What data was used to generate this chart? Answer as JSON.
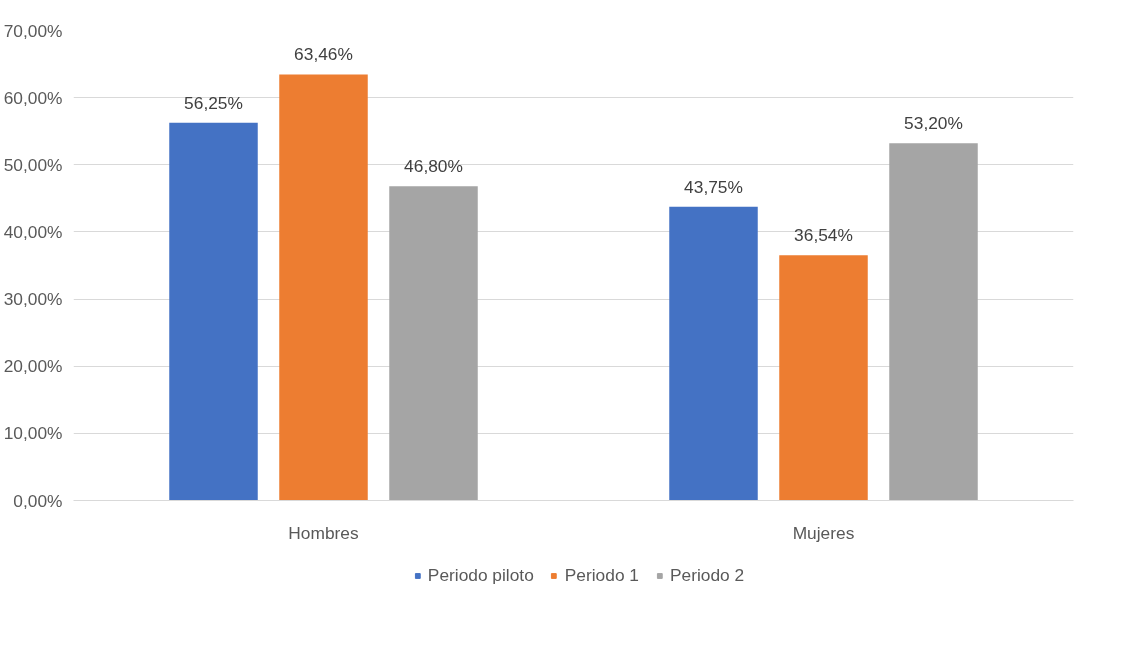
{
  "chart_data": {
    "type": "bar",
    "categories": [
      "Hombres",
      "Mujeres"
    ],
    "series": [
      {
        "name": "Periodo piloto",
        "color": "#4472c4",
        "values": [
          56.25,
          43.75
        ],
        "value_labels": [
          "56,25%",
          "43,75%"
        ]
      },
      {
        "name": "Periodo 1",
        "color": "#ed7d31",
        "values": [
          63.46,
          36.54
        ],
        "value_labels": [
          "63,46%",
          "36,54%"
        ]
      },
      {
        "name": "Periodo 2",
        "color": "#a5a5a5",
        "values": [
          46.8,
          53.2
        ],
        "value_labels": [
          "46,80%",
          "53,20%"
        ]
      }
    ],
    "ylim": [
      0,
      70
    ],
    "yticks": [
      {
        "value": 0,
        "label": "0,00%"
      },
      {
        "value": 10,
        "label": "10,00%"
      },
      {
        "value": 20,
        "label": "20,00%"
      },
      {
        "value": 30,
        "label": "30,00%"
      },
      {
        "value": 40,
        "label": "40,00%"
      },
      {
        "value": 50,
        "label": "50,00%"
      },
      {
        "value": 60,
        "label": "60,00%"
      },
      {
        "value": 70,
        "label": "70,00%"
      }
    ],
    "grid": "y",
    "legend": "bottom"
  }
}
